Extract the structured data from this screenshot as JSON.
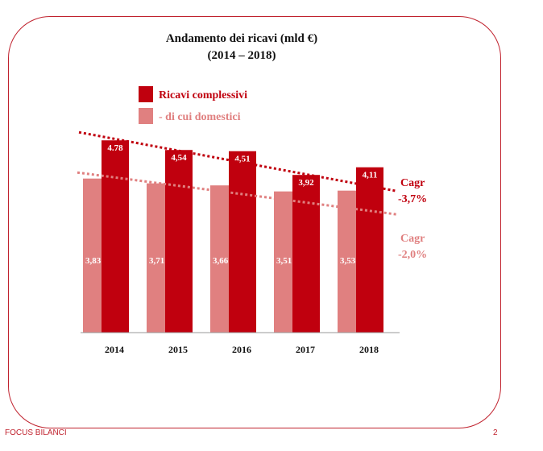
{
  "title_line1": "Andamento dei ricavi (mld €)",
  "title_line2": "(2014 – 2018)",
  "footer_left": "FOCUS BILANCI",
  "page_number": "2",
  "colors": {
    "primary": "#c0000e",
    "secondary": "#e08080",
    "frame": "#c0222e"
  },
  "chart_data": {
    "type": "bar",
    "title": "Andamento dei ricavi (mld €)",
    "subtitle": "(2014 – 2018)",
    "categories": [
      "2014",
      "2015",
      "2016",
      "2017",
      "2018"
    ],
    "ylim": [
      0,
      5
    ],
    "grid": false,
    "legend_position": "top-left",
    "series": [
      {
        "name": "Ricavi complessivi",
        "values": [
          4.78,
          4.54,
          4.51,
          3.92,
          4.11
        ],
        "labels": [
          "4.78",
          "4,54",
          "4,51",
          "3,92",
          "4,11"
        ],
        "color": "#c0000e"
      },
      {
        "name": "- di cui domestici",
        "values": [
          3.83,
          3.71,
          3.66,
          3.51,
          3.53
        ],
        "labels": [
          "3,83",
          "3,71",
          "3,66",
          "3,51",
          "3,53"
        ],
        "color": "#e08080"
      }
    ],
    "trendlines": [
      {
        "series": "Ricavi complessivi",
        "label1": "Cagr",
        "label2": "-3,7%",
        "start": 4.98,
        "end": 3.52
      },
      {
        "series": "- di cui domestici",
        "label1": "Cagr",
        "label2": "-2,0%",
        "start": 3.98,
        "end": 2.94
      }
    ]
  }
}
